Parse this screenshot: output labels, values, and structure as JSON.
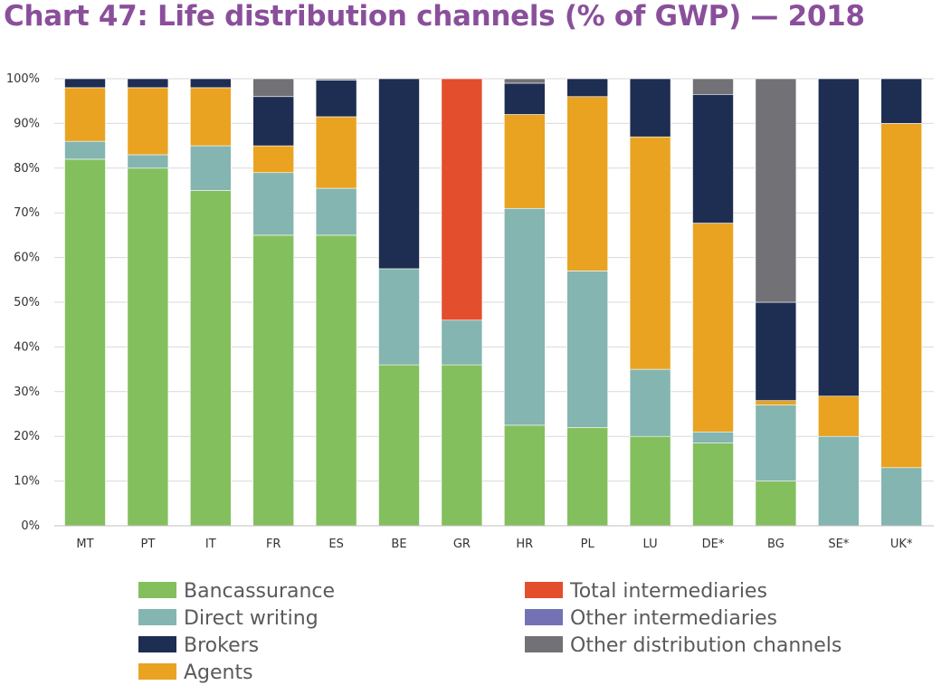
{
  "chart_data": {
    "type": "bar",
    "stacked": true,
    "title": "Chart 47: Life distribution channels (% of GWP) — 2018",
    "xlabel": "",
    "ylabel": "",
    "ylim": [
      0,
      100
    ],
    "yticks": [
      "0%",
      "10%",
      "20%",
      "30%",
      "40%",
      "50%",
      "60%",
      "70%",
      "80%",
      "90%",
      "100%"
    ],
    "grid": true,
    "legend_position": "bottom",
    "categories": [
      "MT",
      "PT",
      "IT",
      "FR",
      "ES",
      "BE",
      "GR",
      "HR",
      "PL",
      "LU",
      "DE*",
      "BG",
      "SE*",
      "UK*"
    ],
    "series": [
      {
        "name": "Bancassurance",
        "color": "#84bf5e",
        "values": [
          82,
          80,
          75,
          65,
          65,
          36,
          36,
          22.5,
          22,
          20,
          18.5,
          10,
          0,
          0
        ]
      },
      {
        "name": "Direct writing",
        "color": "#84b5b0",
        "values": [
          4,
          3,
          10,
          14,
          10.5,
          21.5,
          10,
          48.5,
          35,
          15,
          2.5,
          17,
          20,
          13
        ]
      },
      {
        "name": "Brokers",
        "color": "#1e2d52",
        "values": [
          2,
          2,
          2,
          11,
          8.2,
          42.5,
          0,
          7,
          4,
          13,
          28.8,
          22,
          71,
          10
        ]
      },
      {
        "name": "Agents",
        "color": "#e9a321",
        "values": [
          12,
          15,
          13,
          6,
          16,
          0,
          0,
          21,
          39,
          52,
          46.7,
          1,
          9,
          77
        ]
      },
      {
        "name": "Total intermediaries",
        "color": "#e34e2d",
        "values": [
          0,
          0,
          0,
          0,
          0,
          0,
          54,
          0,
          0,
          0,
          0,
          0,
          0,
          0
        ]
      },
      {
        "name": "Other intermediaries",
        "color": "#7472b4",
        "values": [
          0,
          0,
          0,
          0,
          0,
          0,
          0,
          0,
          0,
          0,
          0,
          0,
          0,
          0
        ]
      },
      {
        "name": "Other distribution channels",
        "color": "#727175",
        "values": [
          0,
          0,
          0,
          4,
          0.3,
          0,
          0,
          1,
          0,
          0,
          3.5,
          50,
          0,
          0
        ]
      }
    ],
    "stack_order": [
      "Bancassurance",
      "Direct writing",
      "Agents",
      "Brokers",
      "Total intermediaries",
      "Other intermediaries",
      "Other distribution channels"
    ],
    "legend_order": [
      "Bancassurance",
      "Direct writing",
      "Brokers",
      "Agents",
      "Total intermediaries",
      "Other intermediaries",
      "Other distribution channels"
    ]
  }
}
